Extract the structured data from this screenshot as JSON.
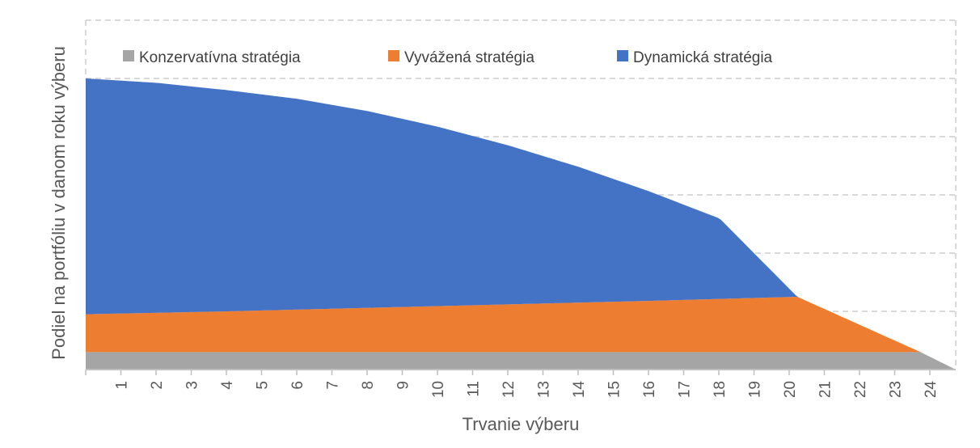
{
  "chart_data": {
    "type": "area",
    "stacked": true,
    "xlabel": "Trvanie výberu",
    "ylabel": "Podiel na portfóliu v danom roku výberu",
    "x_ticks": [
      "1",
      "2",
      "3",
      "4",
      "5",
      "6",
      "7",
      "8",
      "9",
      "10",
      "11",
      "12",
      "13",
      "14",
      "15",
      "16",
      "17",
      "18",
      "19",
      "20",
      "21",
      "22",
      "23",
      "24"
    ],
    "x_range": [
      0,
      24.7
    ],
    "y_range": [
      0,
      100
    ],
    "y_tick_labels_shown": false,
    "grid": "horizontal-dashed",
    "legend_position": "top",
    "series": [
      {
        "name": "Konzervatívna stratégia",
        "color": "#a5a5a5",
        "x": [
          0,
          23.7,
          24.7
        ],
        "values": [
          6,
          6,
          0
        ]
      },
      {
        "name": "Vyvážená stratégia",
        "color": "#ed7d31",
        "x": [
          0,
          4,
          8,
          12,
          16,
          20.2,
          23.7,
          24.7
        ],
        "values": [
          13,
          14,
          15.2,
          16.4,
          17.6,
          19,
          0,
          0
        ]
      },
      {
        "name": "Dynamická stratégia",
        "color": "#4472c4",
        "x": [
          0,
          2,
          4,
          6,
          8,
          10,
          12,
          14,
          16,
          18,
          20.2
        ],
        "values": [
          81,
          79,
          76,
          72.4,
          67.6,
          61.6,
          54.6,
          46.6,
          37.6,
          27.6,
          0
        ]
      }
    ]
  }
}
